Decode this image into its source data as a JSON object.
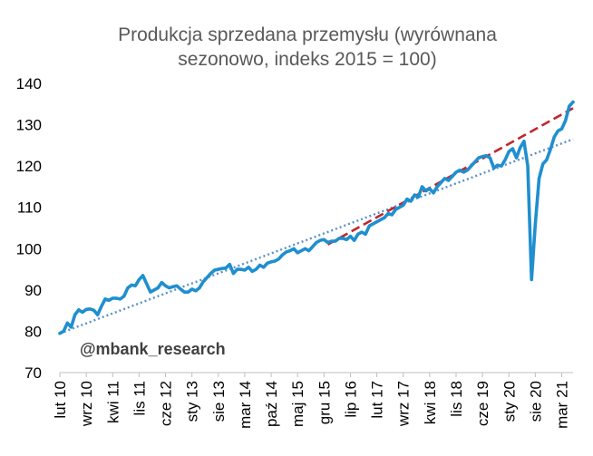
{
  "chart_data": {
    "type": "line",
    "title_lines": [
      "Produkcja sprzedana przemysłu (wyrównana",
      "sezonowo, indeks 2015 = 100)"
    ],
    "watermark": "@mbank_research",
    "ylim": [
      70,
      140
    ],
    "yticks": [
      70,
      80,
      90,
      100,
      110,
      120,
      130,
      140
    ],
    "xlim": [
      "2010-02",
      "2021-06"
    ],
    "xticks": [
      {
        "date": "2010-02",
        "label": "lut 10"
      },
      {
        "date": "2010-09",
        "label": "wrz 10"
      },
      {
        "date": "2011-04",
        "label": "kwi 11"
      },
      {
        "date": "2011-11",
        "label": "lis 11"
      },
      {
        "date": "2012-06",
        "label": "cze 12"
      },
      {
        "date": "2013-01",
        "label": "sty 13"
      },
      {
        "date": "2013-08",
        "label": "sie 13"
      },
      {
        "date": "2014-03",
        "label": "mar 14"
      },
      {
        "date": "2014-10",
        "label": "paź 14"
      },
      {
        "date": "2015-05",
        "label": "maj 15"
      },
      {
        "date": "2015-12",
        "label": "gru 15"
      },
      {
        "date": "2016-07",
        "label": "lip 16"
      },
      {
        "date": "2017-02",
        "label": "lut 17"
      },
      {
        "date": "2017-09",
        "label": "wrz 17"
      },
      {
        "date": "2018-04",
        "label": "kwi 18"
      },
      {
        "date": "2018-11",
        "label": "lis 18"
      },
      {
        "date": "2019-06",
        "label": "cze 19"
      },
      {
        "date": "2020-01",
        "label": "sty 20"
      },
      {
        "date": "2020-08",
        "label": "sie 20"
      },
      {
        "date": "2021-03",
        "label": "mar 21"
      }
    ],
    "series": [
      {
        "style": "solid",
        "color": "#1f8fcf",
        "points": [
          [
            "2010-02",
            79.5
          ],
          [
            "2010-03",
            80
          ],
          [
            "2010-04",
            82
          ],
          [
            "2010-05",
            81
          ],
          [
            "2010-06",
            84
          ],
          [
            "2010-07",
            85.2
          ],
          [
            "2010-08",
            84.6
          ],
          [
            "2010-09",
            85.3
          ],
          [
            "2010-10",
            85.4
          ],
          [
            "2010-11",
            85.1
          ],
          [
            "2010-12",
            84
          ],
          [
            "2011-01",
            86
          ],
          [
            "2011-02",
            87.8
          ],
          [
            "2011-03",
            87.5
          ],
          [
            "2011-04",
            88
          ],
          [
            "2011-05",
            88
          ],
          [
            "2011-06",
            87.8
          ],
          [
            "2011-07",
            88.5
          ],
          [
            "2011-08",
            90.5
          ],
          [
            "2011-09",
            91.2
          ],
          [
            "2011-10",
            91
          ],
          [
            "2011-11",
            92.5
          ],
          [
            "2011-12",
            93.5
          ],
          [
            "2012-01",
            91.5
          ],
          [
            "2012-02",
            89.5
          ],
          [
            "2012-03",
            90
          ],
          [
            "2012-04",
            90.5
          ],
          [
            "2012-05",
            91.8
          ],
          [
            "2012-06",
            91
          ],
          [
            "2012-07",
            90.5
          ],
          [
            "2012-08",
            90.8
          ],
          [
            "2012-09",
            91
          ],
          [
            "2012-10",
            90.2
          ],
          [
            "2012-11",
            89.5
          ],
          [
            "2012-12",
            89.5
          ],
          [
            "2013-01",
            90.2
          ],
          [
            "2013-02",
            89.8
          ],
          [
            "2013-03",
            90.5
          ],
          [
            "2013-04",
            92
          ],
          [
            "2013-05",
            93
          ],
          [
            "2013-06",
            94
          ],
          [
            "2013-07",
            94.8
          ],
          [
            "2013-08",
            95
          ],
          [
            "2013-09",
            95.2
          ],
          [
            "2013-10",
            95.3
          ],
          [
            "2013-11",
            96.2
          ],
          [
            "2013-12",
            94
          ],
          [
            "2014-01",
            95
          ],
          [
            "2014-02",
            95
          ],
          [
            "2014-03",
            94.8
          ],
          [
            "2014-04",
            95.5
          ],
          [
            "2014-05",
            94.5
          ],
          [
            "2014-06",
            95
          ],
          [
            "2014-07",
            96
          ],
          [
            "2014-08",
            95.5
          ],
          [
            "2014-09",
            96.5
          ],
          [
            "2014-10",
            96.8
          ],
          [
            "2014-11",
            97
          ],
          [
            "2014-12",
            97.5
          ],
          [
            "2015-01",
            98.5
          ],
          [
            "2015-02",
            99.2
          ],
          [
            "2015-03",
            99.5
          ],
          [
            "2015-04",
            100
          ],
          [
            "2015-05",
            99
          ],
          [
            "2015-06",
            99.5
          ],
          [
            "2015-07",
            100
          ],
          [
            "2015-08",
            99.5
          ],
          [
            "2015-09",
            100.5
          ],
          [
            "2015-10",
            101.5
          ],
          [
            "2015-11",
            102
          ],
          [
            "2015-12",
            102.2
          ],
          [
            "2016-01",
            101.5
          ],
          [
            "2016-02",
            101.8
          ],
          [
            "2016-03",
            101.8
          ],
          [
            "2016-04",
            102.5
          ],
          [
            "2016-05",
            102.5
          ],
          [
            "2016-06",
            102.2
          ],
          [
            "2016-07",
            103
          ],
          [
            "2016-08",
            102
          ],
          [
            "2016-09",
            103.5
          ],
          [
            "2016-10",
            104
          ],
          [
            "2016-11",
            103.5
          ],
          [
            "2016-12",
            105.5
          ],
          [
            "2017-01",
            106
          ],
          [
            "2017-02",
            106.5
          ],
          [
            "2017-03",
            107
          ],
          [
            "2017-04",
            107.5
          ],
          [
            "2017-05",
            108.5
          ],
          [
            "2017-06",
            108.2
          ],
          [
            "2017-07",
            109.5
          ],
          [
            "2017-08",
            110
          ],
          [
            "2017-09",
            110.5
          ],
          [
            "2017-10",
            112
          ],
          [
            "2017-11",
            111.5
          ],
          [
            "2017-12",
            113
          ],
          [
            "2018-01",
            112.5
          ],
          [
            "2018-02",
            115
          ],
          [
            "2018-03",
            114
          ],
          [
            "2018-04",
            114.5
          ],
          [
            "2018-05",
            113.5
          ],
          [
            "2018-06",
            115
          ],
          [
            "2018-07",
            116
          ],
          [
            "2018-08",
            117
          ],
          [
            "2018-09",
            116.5
          ],
          [
            "2018-10",
            117.5
          ],
          [
            "2018-11",
            118.5
          ],
          [
            "2018-12",
            119
          ],
          [
            "2019-01",
            118.5
          ],
          [
            "2019-02",
            119
          ],
          [
            "2019-03",
            120
          ],
          [
            "2019-04",
            121
          ],
          [
            "2019-05",
            122
          ],
          [
            "2019-06",
            122.3
          ],
          [
            "2019-07",
            122.5
          ],
          [
            "2019-08",
            122
          ],
          [
            "2019-09",
            119.5
          ],
          [
            "2019-10",
            120.2
          ],
          [
            "2019-11",
            120
          ],
          [
            "2019-12",
            121.5
          ],
          [
            "2020-01",
            123.5
          ],
          [
            "2020-02",
            124.2
          ],
          [
            "2020-03",
            122
          ],
          [
            "2020-04",
            124.5
          ],
          [
            "2020-05",
            126
          ],
          [
            "2020-06",
            120
          ],
          [
            "2020-07",
            92.5
          ],
          [
            "2020-08",
            106
          ],
          [
            "2020-09",
            117
          ],
          [
            "2020-10",
            120.5
          ],
          [
            "2020-11",
            121.5
          ],
          [
            "2020-12",
            124
          ],
          [
            "2021-01",
            127
          ],
          [
            "2021-02",
            128.5
          ],
          [
            "2021-03",
            129
          ],
          [
            "2021-04",
            131
          ],
          [
            "2021-05",
            134.5
          ],
          [
            "2021-06",
            135.5
          ]
        ]
      },
      {
        "style": "dashed",
        "color": "#c0262d",
        "points": [
          [
            "2016-01",
            101
          ],
          [
            "2021-06",
            134
          ]
        ]
      },
      {
        "style": "dotted",
        "color": "#5b8fc9",
        "points": [
          [
            "2010-02",
            79.5
          ],
          [
            "2021-06",
            126.5
          ]
        ]
      }
    ]
  }
}
